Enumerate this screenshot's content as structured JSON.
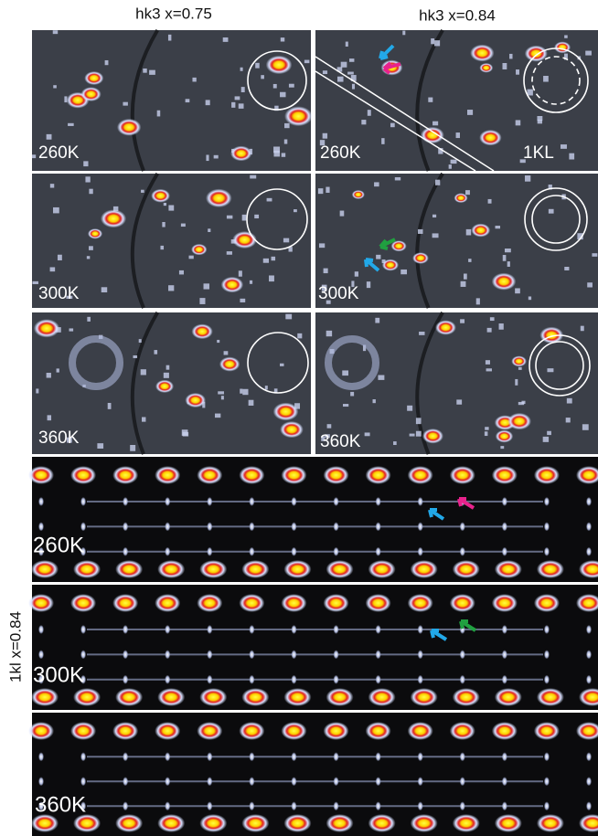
{
  "columns": [
    "hk3 x=0.75",
    "hk3 x=0.84"
  ],
  "top_panels": [
    {
      "label": "260K"
    },
    {
      "label": "260K",
      "annotation": "1KL"
    },
    {
      "label": "300K"
    },
    {
      "label": "300K"
    },
    {
      "label": "360K"
    },
    {
      "label": "360K"
    }
  ],
  "side_label": "1kl x=0.84",
  "bottom_panels": [
    {
      "label": "260K"
    },
    {
      "label": "300K"
    },
    {
      "label": "360K"
    }
  ]
}
